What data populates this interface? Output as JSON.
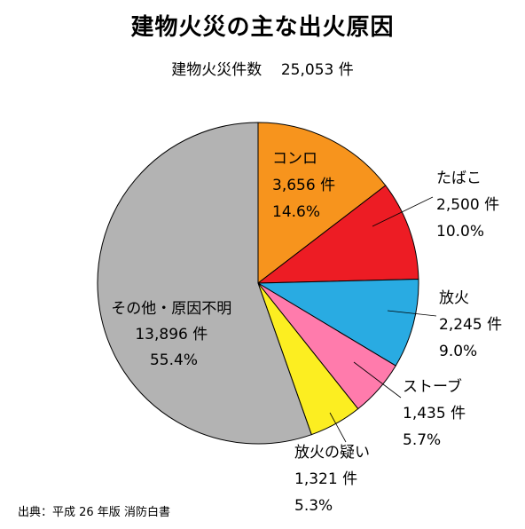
{
  "title": "建物火災の主な出火原因",
  "subtitle": {
    "label": "建物火災件数",
    "value": "25,053 件"
  },
  "source": "出典：平成 26 年版 消防白書",
  "chart_data": {
    "type": "pie",
    "start": "12 o'clock",
    "direction": "clockwise",
    "slices": [
      {
        "name": "コンロ",
        "count": "3,656 件",
        "percent": "14.6%",
        "value": 14.6,
        "color": "#f7941d"
      },
      {
        "name": "たばこ",
        "count": "2,500 件",
        "percent": "10.0%",
        "value": 10.0,
        "color": "#ed1c24"
      },
      {
        "name": "放火",
        "count": "2,245 件",
        "percent": "9.0%",
        "value": 9.0,
        "color": "#29abe2"
      },
      {
        "name": "ストーブ",
        "count": "1,435 件",
        "percent": "5.7%",
        "value": 5.7,
        "color": "#ff7bac"
      },
      {
        "name": "放火の疑い",
        "count": "1,321 件",
        "percent": "5.3%",
        "value": 5.3,
        "color": "#fcee21"
      },
      {
        "name": "その他・原因不明",
        "count": "13,896 件",
        "percent": "55.4%",
        "value": 55.4,
        "color": "#b3b3b3"
      }
    ]
  }
}
